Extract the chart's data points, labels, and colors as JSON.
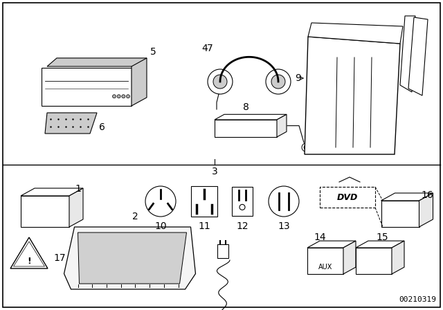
{
  "title": "",
  "background_color": "#ffffff",
  "border_color": "#000000",
  "text_color": "#000000",
  "diagram_number": "00210319",
  "font_size_labels": 10,
  "font_size_diag_num": 8
}
